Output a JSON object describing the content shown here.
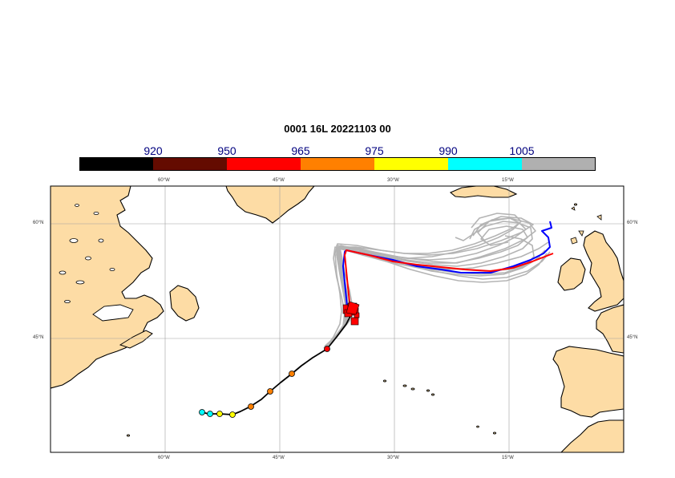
{
  "title": "0001 16L 20221103 00",
  "colorbar": {
    "labels": [
      "920",
      "950",
      "965",
      "975",
      "990",
      "1005"
    ],
    "colors": [
      "#000000",
      "#640b00",
      "#ff0000",
      "#ff8000",
      "#ffff00",
      "#00ffff",
      "#b0b0b0"
    ]
  },
  "axes": {
    "lon_ticks": [
      "60°W",
      "45°W",
      "30°W",
      "15°W"
    ],
    "lat_ticks": [
      "60°N",
      "45°N"
    ]
  },
  "colors": {
    "land": "#fddca5",
    "ensemble": "#b4b4b4",
    "track_red": "#ff0000",
    "track_blue": "#0000ff",
    "track_black": "#000000"
  }
}
